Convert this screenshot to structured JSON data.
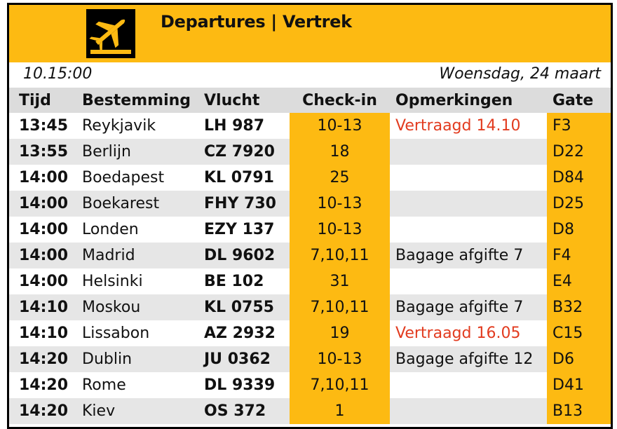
{
  "header": {
    "title": "Departures |  Vertrek",
    "icon": "airplane-departure-icon",
    "accent_color": "#fdba12"
  },
  "status": {
    "time": "10.15:00",
    "date": "Woensdag, 24 maart"
  },
  "table": {
    "columns": [
      "Tijd",
      "Bestemming",
      "Vlucht",
      "Check-in",
      "Opmerkingen",
      "Gate"
    ],
    "rows": [
      {
        "time": "13:45",
        "destination": "Reykjavik",
        "flight": "LH 987",
        "checkin": "10-13",
        "remark": "Vertraagd 14.10",
        "gate": "F3",
        "delayed": true
      },
      {
        "time": "13:55",
        "destination": "Berlijn",
        "flight": "CZ 7920",
        "checkin": "18",
        "remark": "",
        "gate": "D22",
        "delayed": false
      },
      {
        "time": "14:00",
        "destination": "Boedapest",
        "flight": "KL 0791",
        "checkin": "25",
        "remark": "",
        "gate": "D84",
        "delayed": false
      },
      {
        "time": "14:00",
        "destination": "Boekarest",
        "flight": "FHY 730",
        "checkin": "10-13",
        "remark": "",
        "gate": "D25",
        "delayed": false
      },
      {
        "time": "14:00",
        "destination": "Londen",
        "flight": "EZY 137",
        "checkin": "10-13",
        "remark": "",
        "gate": "D8",
        "delayed": false
      },
      {
        "time": "14:00",
        "destination": "Madrid",
        "flight": "DL 9602",
        "checkin": "7,10,11",
        "remark": "Bagage afgifte 7",
        "gate": "F4",
        "delayed": false
      },
      {
        "time": "14:00",
        "destination": "Helsinki",
        "flight": "BE 102",
        "checkin": "31",
        "remark": "",
        "gate": "E4",
        "delayed": false
      },
      {
        "time": "14:10",
        "destination": "Moskou",
        "flight": "KL 0755",
        "checkin": "7,10,11",
        "remark": "Bagage afgifte 7",
        "gate": "B32",
        "delayed": false
      },
      {
        "time": "14:10",
        "destination": "Lissabon",
        "flight": "AZ 2932",
        "checkin": "19",
        "remark": "Vertraagd 16.05",
        "gate": "C15",
        "delayed": true
      },
      {
        "time": "14:20",
        "destination": "Dublin",
        "flight": "JU 0362",
        "checkin": "10-13",
        "remark": "Bagage afgifte 12",
        "gate": "D6",
        "delayed": false
      },
      {
        "time": "14:20",
        "destination": "Rome",
        "flight": "DL 9339",
        "checkin": "7,10,11",
        "remark": "",
        "gate": "D41",
        "delayed": false
      },
      {
        "time": "14:20",
        "destination": "Kiev",
        "flight": "OS 372",
        "checkin": "1",
        "remark": "",
        "gate": "B13",
        "delayed": false
      }
    ]
  }
}
